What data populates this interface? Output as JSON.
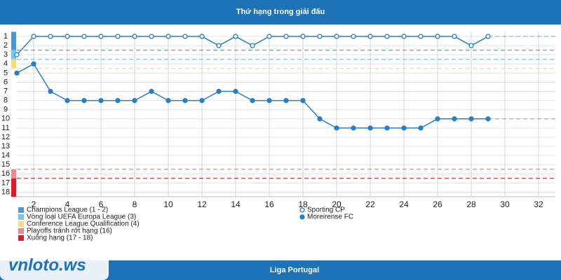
{
  "header": {
    "title": "Thứ hạng trong giải đấu"
  },
  "chart_data": {
    "type": "line",
    "x": [
      1,
      2,
      3,
      4,
      5,
      6,
      7,
      8,
      9,
      10,
      11,
      12,
      13,
      14,
      15,
      16,
      17,
      18,
      19,
      20,
      21,
      22,
      23,
      24,
      25,
      26,
      27,
      28,
      29
    ],
    "series": [
      {
        "name": "Sporting CP",
        "color": "#2a7fc1",
        "marker": "hollow",
        "values": [
          3,
          1,
          1,
          1,
          1,
          1,
          1,
          1,
          1,
          1,
          1,
          1,
          2,
          1,
          2,
          1,
          1,
          1,
          1,
          1,
          1,
          1,
          1,
          1,
          1,
          1,
          1,
          2,
          1
        ]
      },
      {
        "name": "Moreirense FC",
        "color": "#2a7fc1",
        "marker": "filled",
        "values": [
          5,
          4,
          7,
          8,
          8,
          8,
          8,
          8,
          7,
          8,
          8,
          8,
          7,
          7,
          8,
          8,
          8,
          8,
          10,
          11,
          11,
          11,
          11,
          11,
          11,
          10,
          10,
          10,
          10
        ]
      }
    ],
    "xlim": [
      1,
      33
    ],
    "xticks": [
      2,
      4,
      6,
      8,
      10,
      12,
      14,
      16,
      18,
      20,
      22,
      24,
      26,
      28,
      30,
      32
    ],
    "ylim": [
      0.5,
      18.5
    ],
    "y_inverted": true,
    "yticks": [
      1,
      2,
      3,
      4,
      5,
      6,
      7,
      8,
      9,
      10,
      11,
      12,
      13,
      14,
      15,
      16,
      17,
      18
    ],
    "grid": true,
    "zones": [
      {
        "label": "Champions League (1 - 2)",
        "color": "#4f97cc",
        "ranks": [
          1,
          2
        ]
      },
      {
        "label": "Vòng loại UEFA Europa League (3)",
        "color": "#7cc4e4",
        "ranks": [
          3,
          3
        ]
      },
      {
        "label": "Conference League Qualification (4)",
        "color": "#f3dc85",
        "ranks": [
          4,
          4
        ]
      },
      {
        "label": "Playoffs tránh rớt hạng (16)",
        "color": "#e88a94",
        "ranks": [
          16,
          16
        ]
      },
      {
        "label": "Xuống hạng (17 - 18)",
        "color": "#d21f2e",
        "ranks": [
          17,
          18
        ]
      }
    ]
  },
  "footer": {
    "title": "Liga Portugal"
  },
  "watermark": "vnloto.ws"
}
